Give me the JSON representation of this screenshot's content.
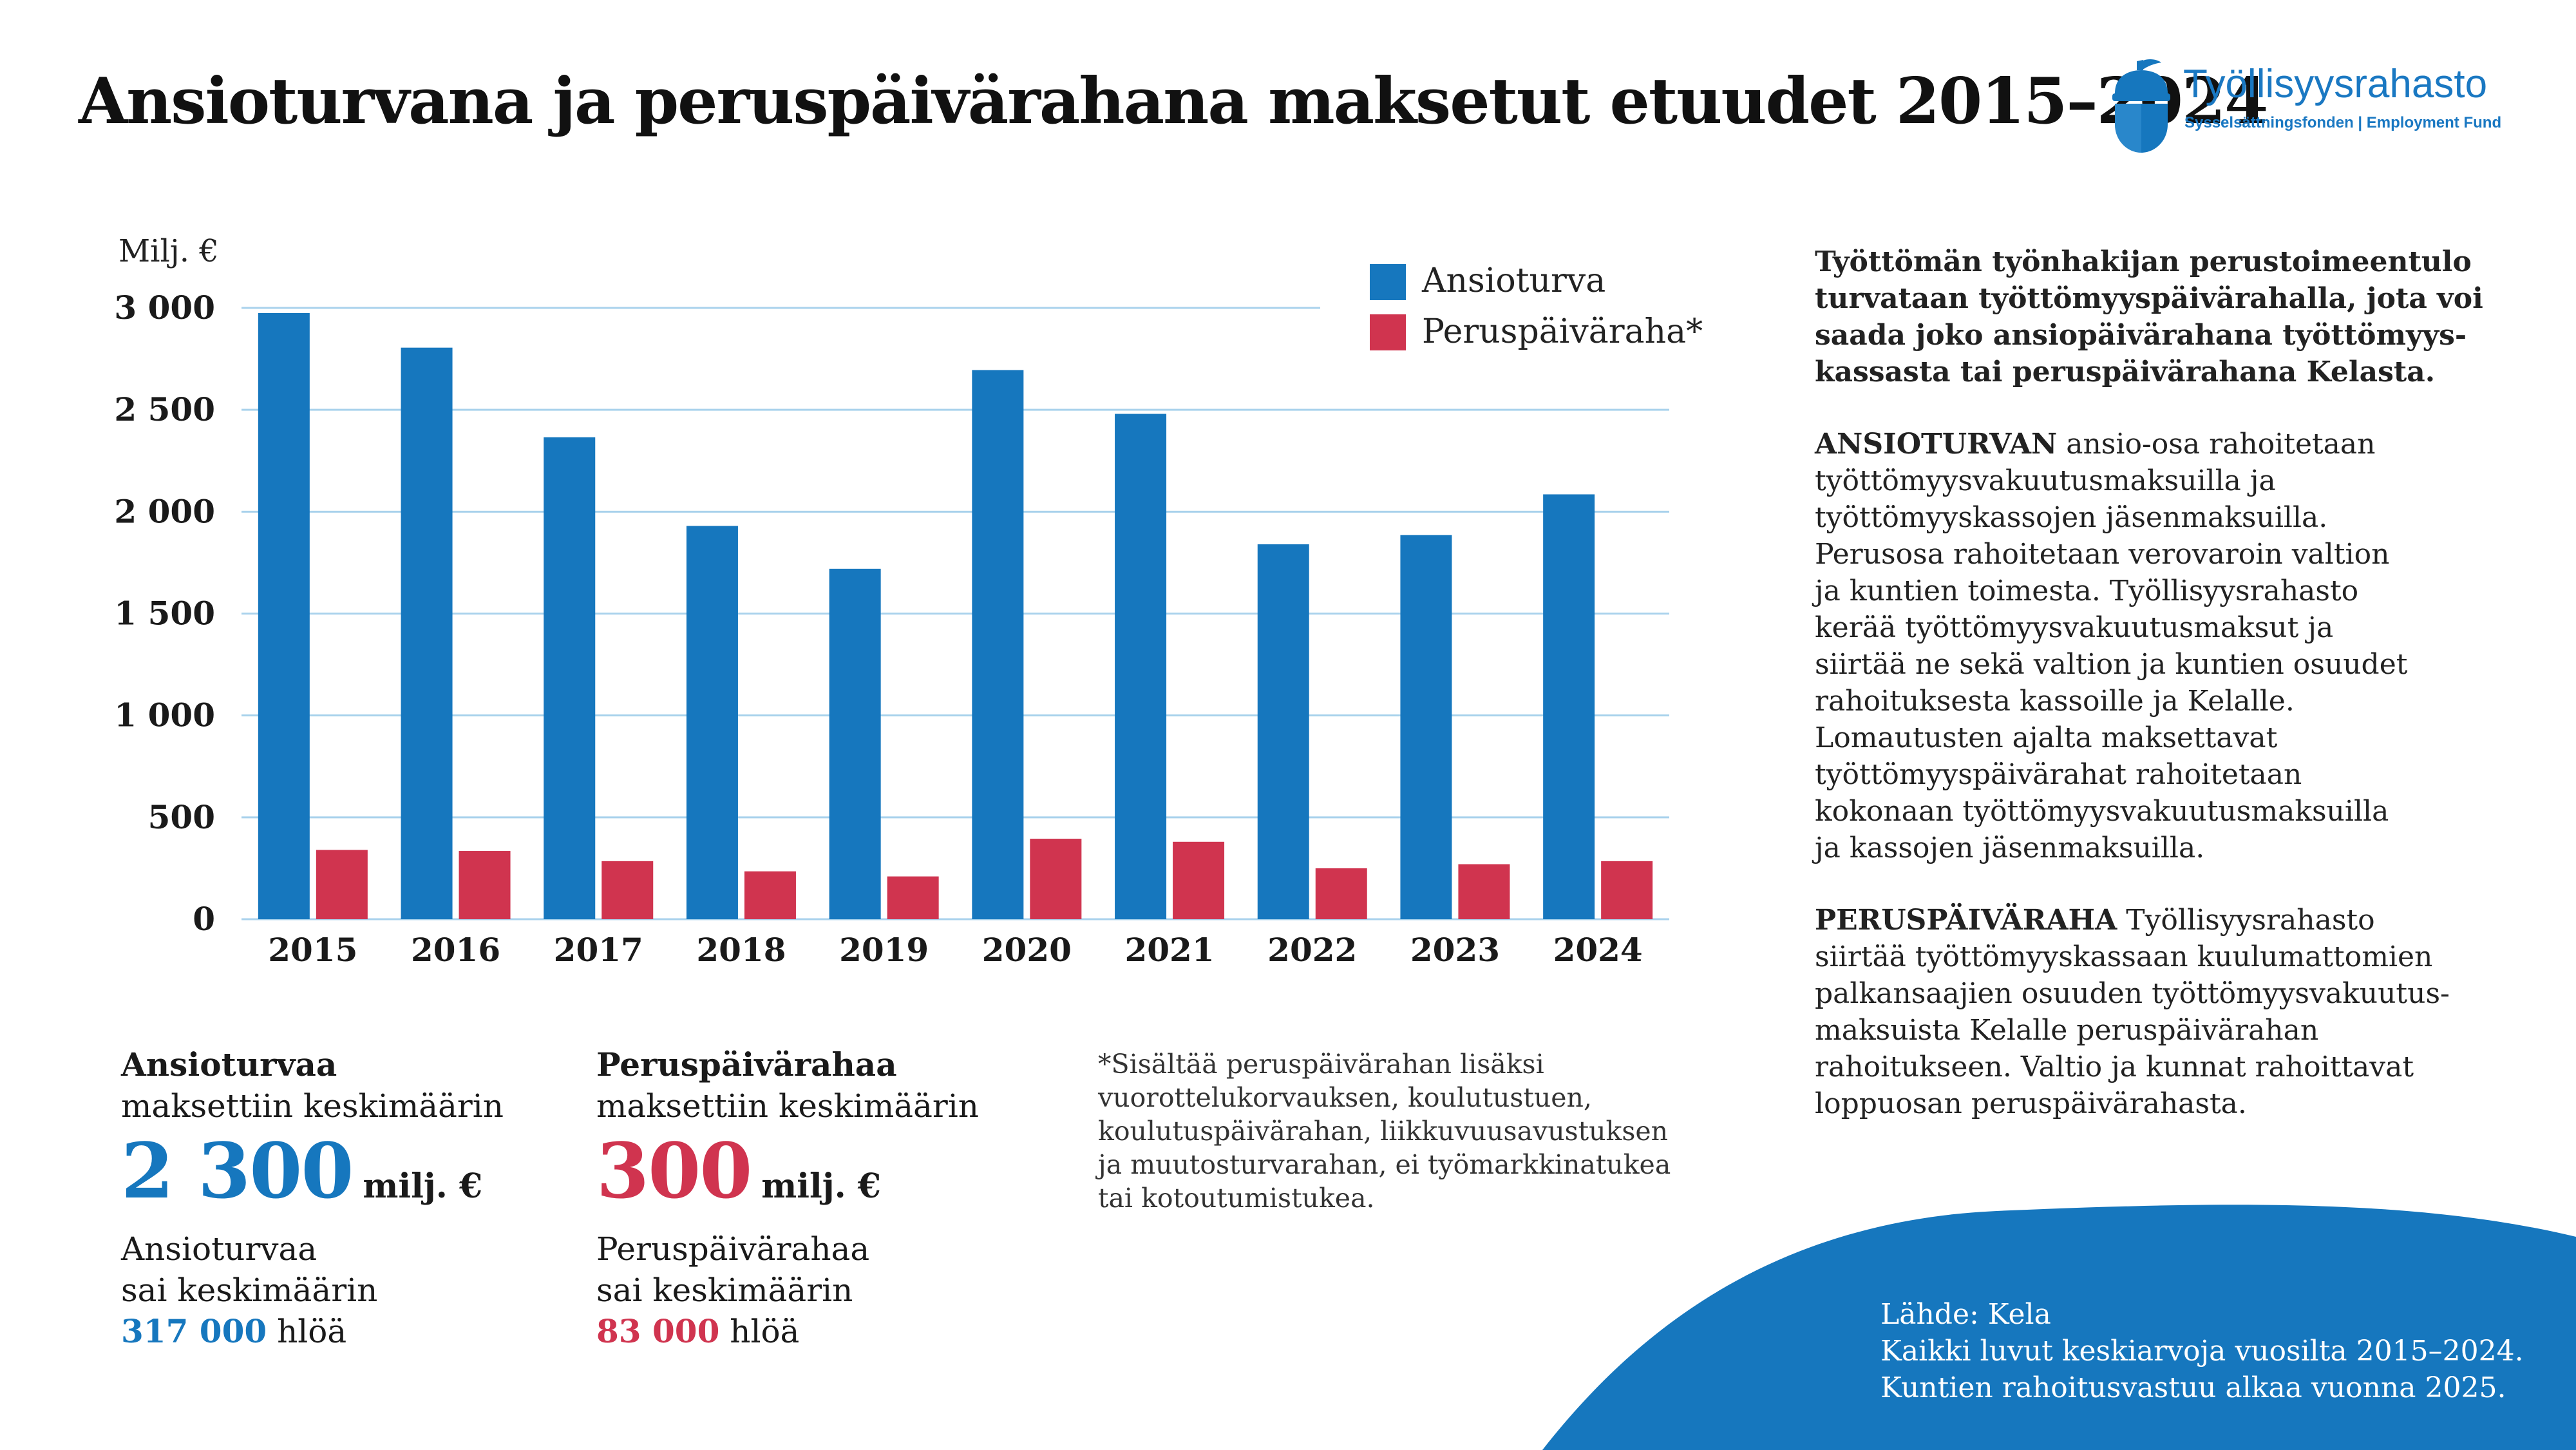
{
  "title": "Ansioturvana ja peruspäivärahana maksetut etuudet 2015–2024",
  "logo": {
    "name": "Työllisyysrahasto",
    "subtitle": "Sysselsättningsfonden | Employment Fund"
  },
  "colors": {
    "ansioturva": "#1677be",
    "peruspaivaraha": "#d0344f",
    "grid": "#a9d2ec",
    "wave": "#1677be"
  },
  "chart_data": {
    "type": "bar",
    "ylabel": "Milj. €",
    "ylim": [
      0,
      3000
    ],
    "yticks": [
      0,
      500,
      1000,
      1500,
      2000,
      2500,
      3000
    ],
    "ytick_labels": [
      "0",
      "500",
      "1 000",
      "1 500",
      "2 000",
      "2 500",
      "3 000"
    ],
    "categories": [
      "2015",
      "2016",
      "2017",
      "2018",
      "2019",
      "2020",
      "2021",
      "2022",
      "2023",
      "2024"
    ],
    "series": [
      {
        "name": "Ansioturva",
        "values": [
          2975,
          2805,
          2365,
          1930,
          1720,
          2695,
          2480,
          1840,
          1885,
          2085
        ]
      },
      {
        "name": "Peruspäiväraha*",
        "values": [
          340,
          335,
          285,
          235,
          210,
          395,
          380,
          250,
          270,
          285
        ]
      }
    ],
    "legend_position": "top-right"
  },
  "stats": {
    "ansioturva": {
      "heading": "Ansioturvaa",
      "subheading": "maksettiin keskimäärin",
      "amount": "2 300",
      "unit": "milj. €",
      "people_line1": "Ansioturvaa",
      "people_line2": "sai keskimäärin",
      "people_count": "317 000",
      "people_unit": "hlöä"
    },
    "peruspaivaraha": {
      "heading": "Peruspäivärahaa",
      "subheading": "maksettiin keskimäärin",
      "amount": "300",
      "unit": "milj. €",
      "people_line1": "Peruspäivärahaa",
      "people_line2": "sai keskimäärin",
      "people_count": "83 000",
      "people_unit": "hlöä"
    }
  },
  "footnote": [
    "*Sisältää peruspäivärahan lisäksi",
    "vuorottelukorvauksen, koulutustuen,",
    "koulutuspäivärahan, liikkuvuusavustuksen",
    "ja muutosturvarahan, ei työmarkkinatukea",
    "tai kotoutumistukea."
  ],
  "side": {
    "intro": [
      "Työttömän työnhakijan perustoimeentulo",
      "turvataan työttömyyspäivärahalla, jota voi",
      "saada joko ansiopäivärahana työttömyys-",
      "kassasta tai peruspäivärahana Kelasta."
    ],
    "ansioturva_head": "ANSIOTURVAN",
    "ansioturva_first": " ansio-osa rahoitetaan",
    "ansioturva": [
      "työttömyysvakuutusmaksuilla ja",
      "työttömyyskassojen jäsenmaksuilla.",
      "Perusosa rahoitetaan verovaroin valtion",
      "ja kuntien toimesta. Työllisyysrahasto",
      "kerää työttömyysvakuutusmaksut ja",
      "siirtää ne sekä valtion ja kuntien osuudet",
      "rahoituksesta kassoille ja Kelalle.",
      "Lomautusten ajalta maksettavat",
      "työttömyyspäivärahat rahoitetaan",
      "kokonaan työttömyysvakuutusmaksuilla",
      "ja kassojen jäsenmaksuilla."
    ],
    "peruspaivaraha_head": "PERUSPÄIVÄRAHA",
    "peruspaivaraha_first": " Työllisyysrahasto",
    "peruspaivaraha": [
      "siirtää työttömyyskassaan kuulumattomien",
      "palkansaajien osuuden työttömyysvakuutus-",
      "maksuista Kelalle peruspäivärahan",
      "rahoitukseen. Valtio ja kunnat rahoittavat",
      "loppuosan peruspäivärahasta."
    ]
  },
  "source": [
    "Lähde: Kela",
    "Kaikki luvut keskiarvoja vuosilta 2015–2024.",
    "Kuntien rahoitusvastuu alkaa vuonna 2025."
  ]
}
